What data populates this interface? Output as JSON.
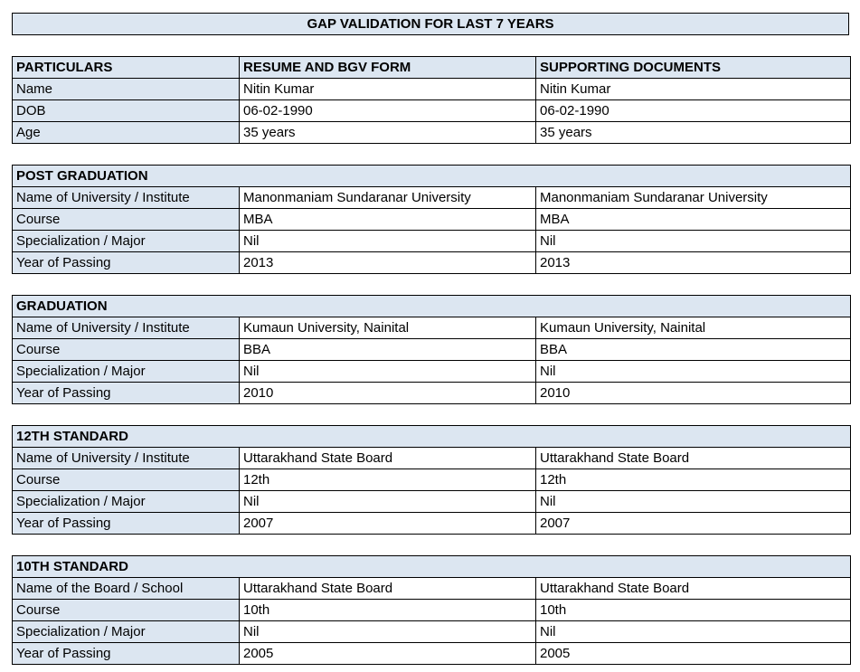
{
  "title": "GAP VALIDATION FOR LAST 7 YEARS",
  "header": {
    "col1": "PARTICULARS",
    "col2": "RESUME AND BGV FORM",
    "col3": "SUPPORTING DOCUMENTS"
  },
  "personal": [
    {
      "label": "Name",
      "resume": "Nitin Kumar",
      "docs": "Nitin Kumar"
    },
    {
      "label": "DOB",
      "resume": "06-02-1990",
      "docs": "06-02-1990"
    },
    {
      "label": "Age",
      "resume": "35 years",
      "docs": "35 years"
    }
  ],
  "sections": [
    {
      "title": "POST GRADUATION",
      "rows": [
        {
          "label": "Name of University / Institute",
          "resume": "Manonmaniam Sundaranar University",
          "docs": "Manonmaniam Sundaranar University"
        },
        {
          "label": "Course",
          "resume": "MBA",
          "docs": "MBA"
        },
        {
          "label": "Specialization / Major",
          "resume": "Nil",
          "docs": "Nil"
        },
        {
          "label": "Year of Passing",
          "resume": "2013",
          "docs": "2013"
        }
      ]
    },
    {
      "title": "GRADUATION",
      "rows": [
        {
          "label": "Name of University / Institute",
          "resume": "Kumaun University, Nainital",
          "docs": "Kumaun University, Nainital"
        },
        {
          "label": "Course",
          "resume": "BBA",
          "docs": "BBA"
        },
        {
          "label": "Specialization / Major",
          "resume": "Nil",
          "docs": "Nil"
        },
        {
          "label": "Year of Passing",
          "resume": "2010",
          "docs": "2010"
        }
      ]
    },
    {
      "title": "12TH STANDARD",
      "rows": [
        {
          "label": "Name of University / Institute",
          "resume": "Uttarakhand State Board",
          "docs": "Uttarakhand State Board"
        },
        {
          "label": "Course",
          "resume": "12th",
          "docs": "12th"
        },
        {
          "label": "Specialization / Major",
          "resume": "Nil",
          "docs": "Nil"
        },
        {
          "label": "Year of Passing",
          "resume": "2007",
          "docs": "2007"
        }
      ]
    },
    {
      "title": "10TH STANDARD",
      "rows": [
        {
          "label": "Name of the Board / School",
          "resume": "Uttarakhand State Board",
          "docs": "Uttarakhand State Board"
        },
        {
          "label": "Course",
          "resume": "10th",
          "docs": "10th"
        },
        {
          "label": "Specialization / Major",
          "resume": "Nil",
          "docs": "Nil"
        },
        {
          "label": "Year of Passing",
          "resume": "2005",
          "docs": "2005"
        }
      ]
    }
  ]
}
